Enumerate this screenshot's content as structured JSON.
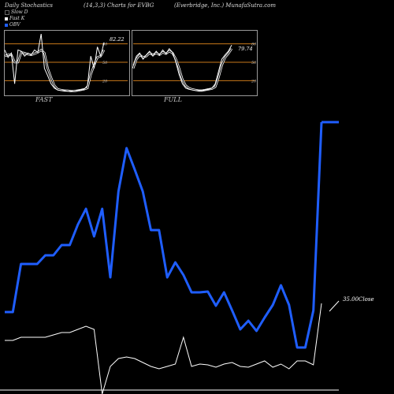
{
  "header": {
    "left": "Daily Stochastics",
    "middle": "(14,3,3) Charts for EVBG",
    "right": "(Everbridge, Inc.) MunafaSutra.com"
  },
  "legend": [
    {
      "label": "Slow D",
      "color": "#000000"
    },
    {
      "label": "Fast K",
      "color": "#ffffff"
    },
    {
      "label": "OBV",
      "color": "#1f5eff"
    }
  ],
  "colors": {
    "obv": "#1f5eff",
    "price": "#ffffff",
    "band": "#c8781a",
    "background": "#000000"
  },
  "chart_data": [
    {
      "type": "line",
      "name": "fast",
      "label": "FAST",
      "value_label": "82.22",
      "yticks": [
        20,
        50,
        80
      ],
      "ylim": [
        0,
        100
      ],
      "bands": [
        20,
        50,
        80
      ],
      "series": [
        {
          "name": "Fast K",
          "values": [
            70,
            58,
            65,
            15,
            70,
            68,
            60,
            65,
            62,
            70,
            66,
            96,
            40,
            28,
            15,
            8,
            5,
            4,
            4,
            3,
            3,
            4,
            4,
            5,
            6,
            12,
            60,
            40,
            75,
            60,
            82
          ]
        },
        {
          "name": "Slow D",
          "values": [
            60,
            62,
            62,
            50,
            50,
            66,
            65,
            63,
            62,
            64,
            66,
            70,
            65,
            40,
            25,
            12,
            6,
            5,
            4,
            4,
            3,
            3,
            4,
            5,
            6,
            8,
            30,
            45,
            58,
            60,
            70
          ]
        }
      ]
    },
    {
      "type": "line",
      "name": "full",
      "label": "FULL",
      "value_label": "79.74",
      "yticks": [
        20,
        50,
        80
      ],
      "ylim": [
        0,
        100
      ],
      "bands": [
        20,
        50,
        80
      ],
      "series": [
        {
          "name": "Fast K",
          "values": [
            45,
            60,
            65,
            55,
            62,
            68,
            60,
            68,
            62,
            70,
            64,
            72,
            66,
            50,
            30,
            15,
            8,
            6,
            5,
            4,
            4,
            4,
            5,
            6,
            8,
            15,
            35,
            55,
            62,
            68,
            78
          ]
        },
        {
          "name": "Slow D",
          "values": [
            40,
            55,
            62,
            58,
            60,
            65,
            62,
            65,
            62,
            66,
            64,
            68,
            65,
            55,
            40,
            22,
            12,
            8,
            6,
            5,
            4,
            4,
            5,
            6,
            7,
            10,
            25,
            45,
            58,
            64,
            72
          ]
        }
      ]
    },
    {
      "type": "line",
      "name": "main",
      "value_label": "35.00Close",
      "series": [
        {
          "name": "OBV",
          "values": [
            396,
            396,
            335,
            335,
            335,
            324,
            324,
            311,
            311,
            285,
            265,
            300,
            265,
            352,
            243,
            188,
            215,
            243,
            292,
            292,
            352,
            333,
            349,
            371,
            371,
            370,
            388,
            371,
            394,
            418,
            407,
            420,
            403,
            387,
            362,
            387,
            441,
            441,
            394,
            155
          ]
        },
        {
          "name": "Price",
          "values": [
            432,
            432,
            428,
            428,
            428,
            428,
            425,
            422,
            422,
            418,
            414,
            418,
            500,
            465,
            455,
            453,
            455,
            460,
            465,
            468,
            465,
            462,
            428,
            465,
            462,
            463,
            466,
            462,
            460,
            465,
            466,
            462,
            458,
            466,
            462,
            468,
            458,
            458,
            463,
            385
          ]
        }
      ]
    }
  ]
}
